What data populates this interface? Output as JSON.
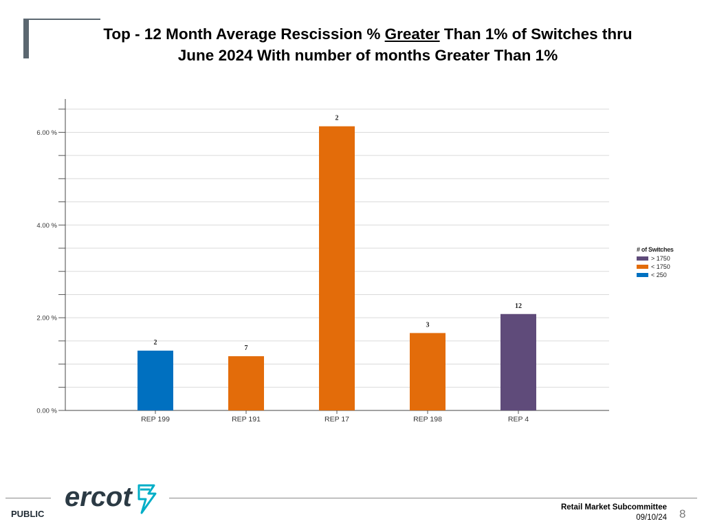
{
  "slide": {
    "title_line1_pre": "Top - 12 Month Average Rescission % ",
    "title_line1_underlined": "Greater",
    "title_line1_post": " Than 1% of Switches thru",
    "title_line2": "June 2024 With number of months Greater Than 1%"
  },
  "legend": {
    "title": "# of Switches",
    "items": [
      {
        "label": "> 1750",
        "color": "#5f4b7a"
      },
      {
        "label": "< 1750",
        "color": "#e36c0a"
      },
      {
        "label": "< 250",
        "color": "#0070c0"
      }
    ]
  },
  "chart_data": {
    "type": "bar",
    "title": "",
    "xlabel": "",
    "ylabel": "",
    "ylim": [
      0,
      6.6
    ],
    "y_ticks": [
      {
        "value": 0,
        "label": "0.00 %"
      },
      {
        "value": 2,
        "label": "2.00 %"
      },
      {
        "value": 4,
        "label": "4.00 %"
      },
      {
        "value": 6,
        "label": "6.00 %"
      }
    ],
    "minor_step": 0.5,
    "categories": [
      "REP 199",
      "REP 191",
      "REP 17",
      "REP 198",
      "REP 4"
    ],
    "values": [
      1.29,
      1.17,
      6.13,
      1.67,
      2.08
    ],
    "data_labels": [
      "2",
      "7",
      "2",
      "3",
      "12"
    ],
    "bar_colors": [
      "#0070c0",
      "#e36c0a",
      "#e36c0a",
      "#e36c0a",
      "#5f4b7a"
    ],
    "grid": true,
    "legend_position": "right"
  },
  "footer": {
    "public": "PUBLIC",
    "logo_text": "ercot",
    "committee": "Retail Market Subcommittee",
    "date": "09/10/24",
    "page": "8"
  }
}
